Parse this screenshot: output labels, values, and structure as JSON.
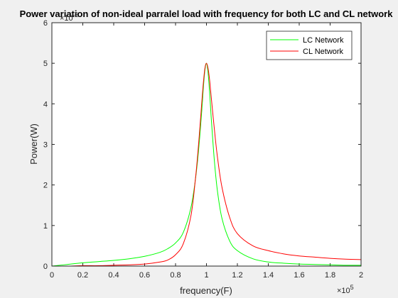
{
  "chart_data": {
    "type": "line",
    "title": "Power variation of non-ideal parralel load with frequency for both LC and CL network",
    "xlabel": "frequency(F)",
    "ylabel": "Power(W)",
    "x_exponent_label": "×10",
    "x_exponent_power": "5",
    "y_exponent_label": "×10",
    "y_exponent_power": "-3",
    "xlim": [
      0,
      2
    ],
    "ylim": [
      0,
      6
    ],
    "x_ticks": [
      0,
      0.2,
      0.4,
      0.6,
      0.8,
      1,
      1.2,
      1.4,
      1.6,
      1.8,
      2
    ],
    "x_tick_labels": [
      "0",
      "0.2",
      "0.4",
      "0.6",
      "0.8",
      "1",
      "1.2",
      "1.4",
      "1.6",
      "1.8",
      "2"
    ],
    "y_ticks": [
      0,
      1,
      2,
      3,
      4,
      5,
      6
    ],
    "y_tick_labels": [
      "0",
      "1",
      "2",
      "3",
      "4",
      "5",
      "6"
    ],
    "legend_position": "top-right",
    "series": [
      {
        "name": "LC Network",
        "color": "#00ff00",
        "x": [
          0,
          0.1,
          0.2,
          0.3,
          0.4,
          0.5,
          0.6,
          0.7,
          0.75,
          0.8,
          0.85,
          0.9,
          0.93,
          0.95,
          0.97,
          0.98,
          0.99,
          1.0,
          1.01,
          1.02,
          1.03,
          1.05,
          1.07,
          1.1,
          1.15,
          1.2,
          1.3,
          1.4,
          1.5,
          1.6,
          1.7,
          1.8,
          1.9,
          2.0
        ],
        "values": [
          0,
          0.04,
          0.08,
          0.11,
          0.14,
          0.18,
          0.24,
          0.34,
          0.43,
          0.57,
          0.83,
          1.45,
          2.18,
          2.9,
          3.85,
          4.4,
          4.83,
          5.0,
          4.78,
          4.3,
          3.7,
          2.65,
          1.88,
          1.18,
          0.62,
          0.38,
          0.18,
          0.1,
          0.07,
          0.05,
          0.04,
          0.03,
          0.02,
          0.02
        ]
      },
      {
        "name": "CL Network",
        "color": "#ff0000",
        "x": [
          0,
          0.1,
          0.2,
          0.3,
          0.4,
          0.5,
          0.6,
          0.7,
          0.75,
          0.8,
          0.85,
          0.9,
          0.93,
          0.95,
          0.97,
          0.98,
          0.99,
          1.0,
          1.01,
          1.02,
          1.03,
          1.05,
          1.07,
          1.1,
          1.15,
          1.2,
          1.3,
          1.4,
          1.5,
          1.6,
          1.7,
          1.8,
          1.9,
          2.0
        ],
        "values": [
          0,
          0.0,
          0.01,
          0.01,
          0.02,
          0.03,
          0.05,
          0.1,
          0.15,
          0.28,
          0.55,
          1.25,
          2.2,
          3.05,
          4.05,
          4.52,
          4.88,
          5.0,
          4.88,
          4.6,
          4.2,
          3.42,
          2.72,
          1.95,
          1.2,
          0.8,
          0.5,
          0.38,
          0.3,
          0.25,
          0.22,
          0.19,
          0.17,
          0.16
        ]
      }
    ]
  }
}
